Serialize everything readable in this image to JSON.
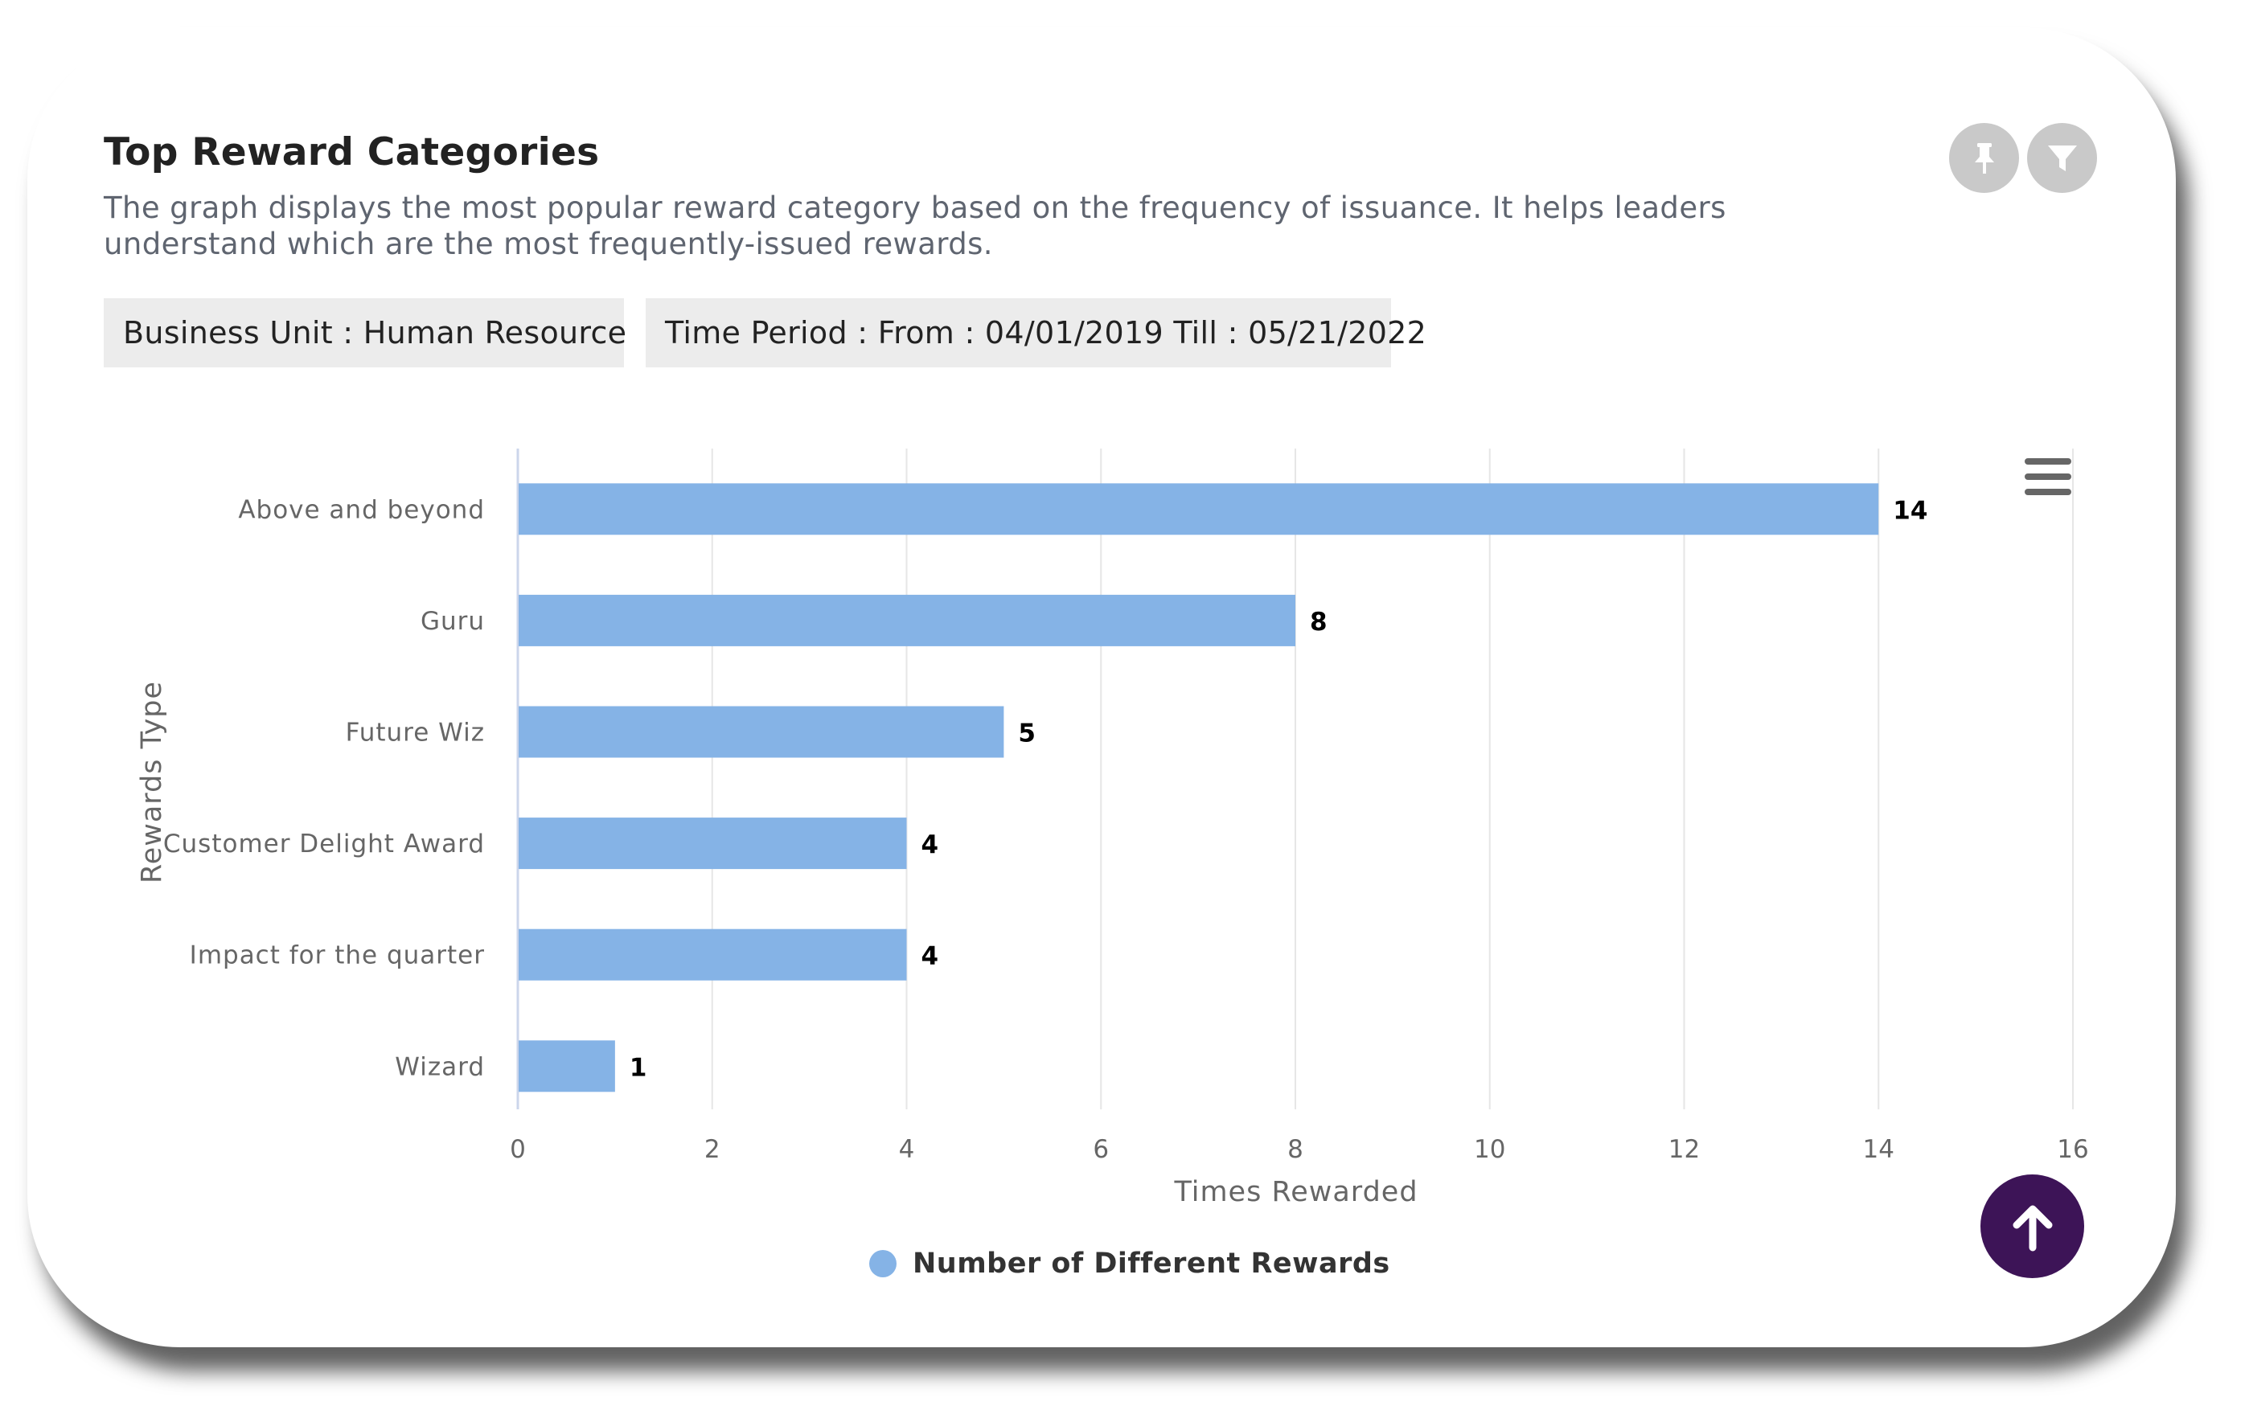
{
  "header": {
    "title": "Top Reward Categories",
    "description": "The graph displays the most popular reward category based on the frequency of issuance. It helps leaders understand which are the most frequently-issued rewards."
  },
  "filters": {
    "business_unit": "Business Unit : Human Resource",
    "time_period": "Time Period : From : 04/01/2019 Till : 05/21/2022"
  },
  "icons": {
    "pin": "pin-icon",
    "filter": "filter-icon",
    "menu": "hamburger-menu-icon",
    "scroll_top": "arrow-up-icon"
  },
  "colors": {
    "bar": "#85b3e6",
    "button_gray": "#c9c9c9",
    "scroll_top_bg": "#3d1457",
    "chip_bg": "#ececec"
  },
  "chart_data": {
    "type": "bar",
    "orientation": "horizontal",
    "categories": [
      "Above and beyond",
      "Guru",
      "Future Wiz",
      "Customer Delight Award",
      "Impact for the quarter",
      "Wizard"
    ],
    "series": [
      {
        "name": "Number of Different Rewards",
        "values": [
          14,
          8,
          5,
          4,
          4,
          1
        ]
      }
    ],
    "xlabel": "Times Rewarded",
    "ylabel": "Rewards Type",
    "xlim": [
      0,
      16
    ],
    "xticks": [
      0,
      2,
      4,
      6,
      8,
      10,
      12,
      14,
      16
    ],
    "grid": true,
    "legend": "bottom-center",
    "data_labels": true
  }
}
